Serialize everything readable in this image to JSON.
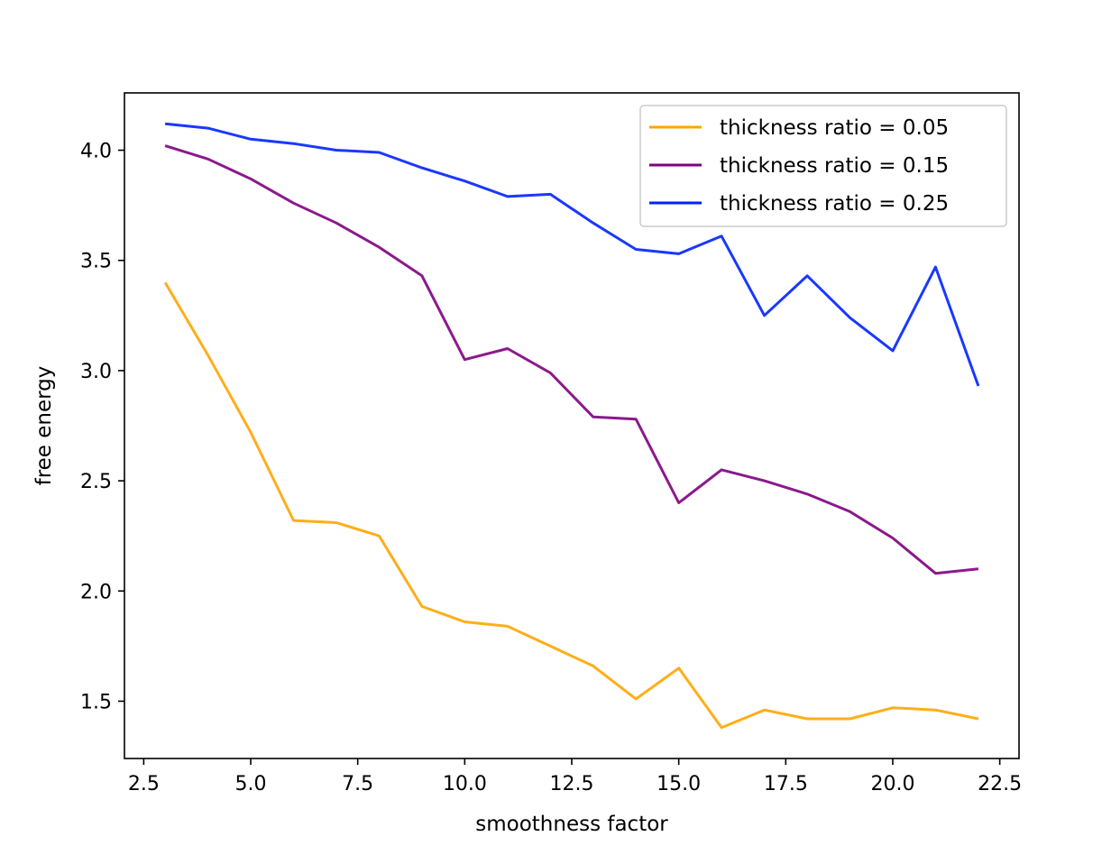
{
  "chart_data": {
    "type": "line",
    "title": "",
    "xlabel": "smoothness factor",
    "ylabel": "free energy",
    "xlim": [
      2.05,
      22.95
    ],
    "ylim": [
      1.24,
      4.26
    ],
    "xticks": [
      "2.5",
      "5.0",
      "7.5",
      "10.0",
      "12.5",
      "15.0",
      "17.5",
      "20.0",
      "22.5"
    ],
    "yticks": [
      "1.5",
      "2.0",
      "2.5",
      "3.0",
      "3.5",
      "4.0"
    ],
    "x": [
      3,
      4,
      5,
      6,
      7,
      8,
      9,
      10,
      11,
      12,
      13,
      14,
      15,
      16,
      17,
      18,
      19,
      20,
      21,
      22
    ],
    "grid": false,
    "legend_position": "top-right",
    "series": [
      {
        "name": "thickness ratio = 0.05",
        "color": "#ffa500",
        "values": [
          3.4,
          3.07,
          2.72,
          2.32,
          2.31,
          2.25,
          1.93,
          1.86,
          1.84,
          1.75,
          1.66,
          1.51,
          1.65,
          1.38,
          1.46,
          1.42,
          1.42,
          1.47,
          1.46,
          1.42
        ]
      },
      {
        "name": "thickness ratio = 0.15",
        "color": "#800080",
        "values": [
          4.02,
          3.96,
          3.87,
          3.76,
          3.67,
          3.56,
          3.43,
          3.05,
          3.1,
          2.99,
          2.79,
          2.78,
          2.4,
          2.55,
          2.5,
          2.44,
          2.36,
          2.24,
          2.08,
          2.1
        ]
      },
      {
        "name": "thickness ratio = 0.25",
        "color": "#0022ff",
        "values": [
          4.12,
          4.1,
          4.05,
          4.03,
          4.0,
          3.99,
          3.92,
          3.86,
          3.79,
          3.8,
          3.67,
          3.55,
          3.53,
          3.61,
          3.25,
          3.43,
          3.24,
          3.09,
          3.47,
          2.93
        ]
      }
    ]
  }
}
